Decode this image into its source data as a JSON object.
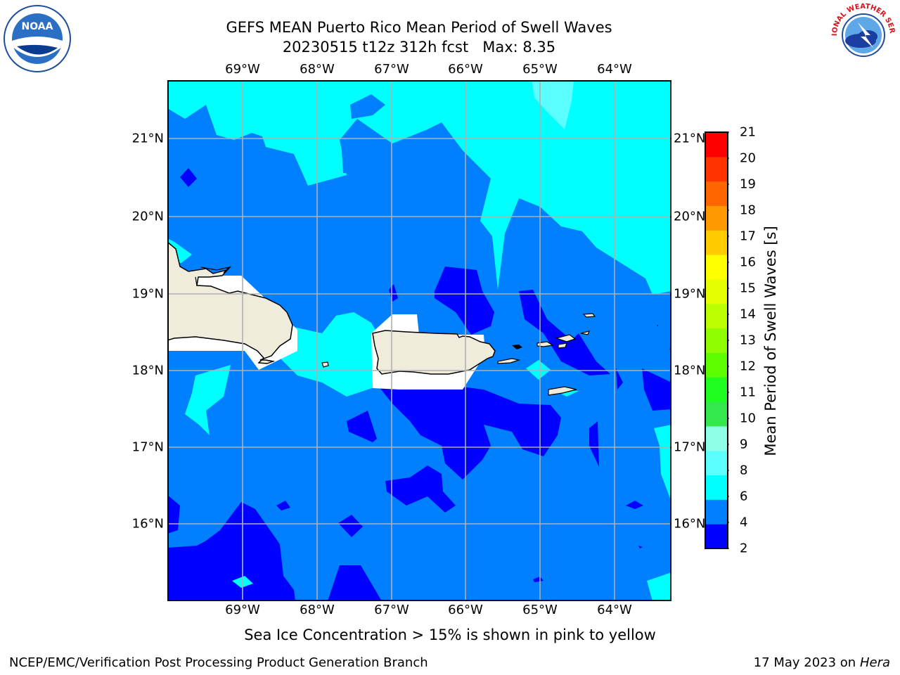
{
  "title_line1": "GEFS MEAN Puerto Rico Mean Period of Swell Waves",
  "title_line2": "20230515 t12z 312h fcst   Max: 8.35",
  "longitude_labels": [
    "69°W",
    "68°W",
    "67°W",
    "66°W",
    "65°W",
    "64°W"
  ],
  "latitude_labels": [
    "21°N",
    "20°N",
    "19°N",
    "18°N",
    "17°N",
    "16°N"
  ],
  "colorbar": {
    "label": "Mean Period of Swell Waves [s]",
    "ticks": [
      "2",
      "4",
      "6",
      "8",
      "9",
      "10",
      "11",
      "12",
      "13",
      "14",
      "15",
      "16",
      "17",
      "18",
      "19",
      "20",
      "21"
    ],
    "colors": [
      "#0000ff",
      "#0080ff",
      "#00ffff",
      "#5cffff",
      "#8fffe8",
      "#33e84d",
      "#1fff1f",
      "#5dff00",
      "#8fff00",
      "#bcff00",
      "#e5ff00",
      "#ffff00",
      "#ffcc00",
      "#ff9900",
      "#ff6600",
      "#ff3300",
      "#ff0000"
    ]
  },
  "map_colors": {
    "period_2_4": "#0000ff",
    "period_4_6": "#0080ff",
    "period_6_8": "#00ffff",
    "period_8_9": "#5cffff",
    "land": "#efecdc",
    "no_data": "#ffffff"
  },
  "sea_ice_note": "Sea Ice Concentration > 15% is shown in pink to yellow",
  "footer": {
    "left": "NCEP/EMC/Verification Post Processing Product Generation Branch",
    "right_date": "17 May 2023 on",
    "right_machine": "Hera"
  },
  "logos": {
    "noaa": "NOAA",
    "nws": "NATIONAL WEATHER SERVICE"
  }
}
